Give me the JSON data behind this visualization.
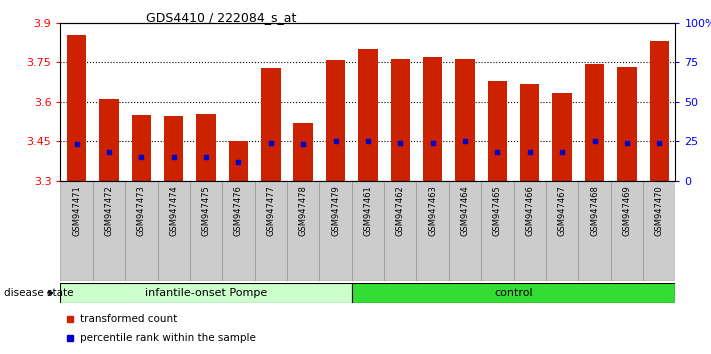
{
  "title": "GDS4410 / 222084_s_at",
  "samples": [
    "GSM947471",
    "GSM947472",
    "GSM947473",
    "GSM947474",
    "GSM947475",
    "GSM947476",
    "GSM947477",
    "GSM947478",
    "GSM947479",
    "GSM947461",
    "GSM947462",
    "GSM947463",
    "GSM947464",
    "GSM947465",
    "GSM947466",
    "GSM947467",
    "GSM947468",
    "GSM947469",
    "GSM947470"
  ],
  "bar_heights": [
    3.855,
    3.61,
    3.55,
    3.545,
    3.552,
    3.45,
    3.73,
    3.52,
    3.758,
    3.8,
    3.762,
    3.77,
    3.762,
    3.68,
    3.668,
    3.635,
    3.742,
    3.732,
    3.83
  ],
  "blue_positions": [
    3.44,
    3.408,
    3.39,
    3.388,
    3.39,
    3.372,
    3.443,
    3.44,
    3.45,
    3.45,
    3.443,
    3.443,
    3.45,
    3.408,
    3.408,
    3.408,
    3.45,
    3.443,
    3.443
  ],
  "bar_color": "#cc2200",
  "blue_color": "#0000cc",
  "ymin": 3.3,
  "ymax": 3.9,
  "ytick_vals": [
    3.3,
    3.45,
    3.6,
    3.75,
    3.9
  ],
  "grid_lines": [
    3.45,
    3.6,
    3.75
  ],
  "right_ytick_pct": [
    0,
    25,
    50,
    75,
    100
  ],
  "right_ylabels": [
    "0",
    "25",
    "50",
    "75",
    "100%"
  ],
  "group1_label": "infantile-onset Pompe",
  "group2_label": "control",
  "group1_count": 9,
  "group2_count": 10,
  "disease_state_label": "disease state",
  "legend1": "transformed count",
  "legend2": "percentile rank within the sample",
  "bg_color": "#ffffff",
  "group1_bg": "#ccffcc",
  "group2_bg": "#33dd33",
  "xticklabel_bg": "#cccccc"
}
